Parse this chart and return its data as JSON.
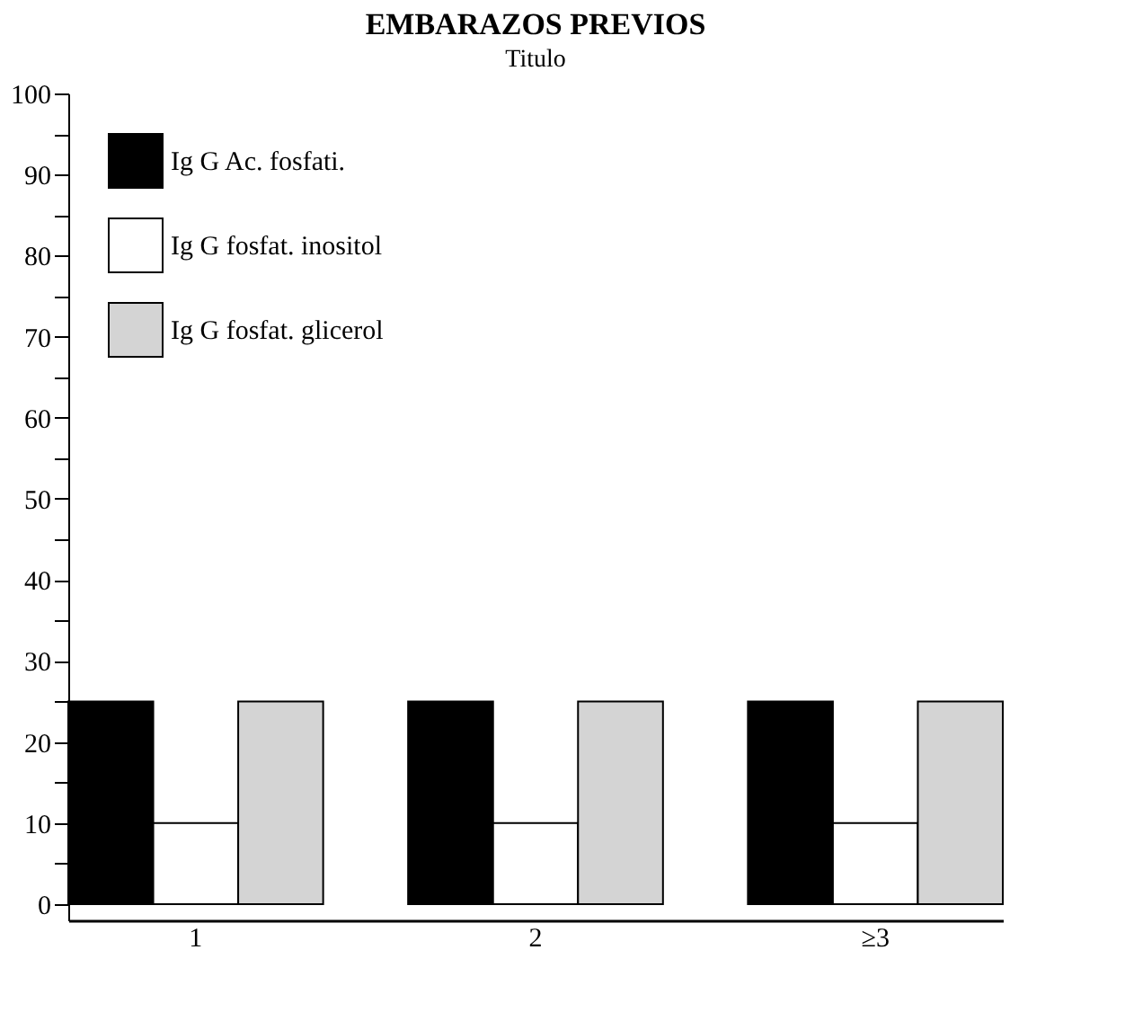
{
  "chart_data": {
    "type": "bar",
    "title": "EMBARAZOS PREVIOS",
    "ylabel": "Titulo",
    "categories": [
      "1",
      "2",
      "≥3"
    ],
    "series": [
      {
        "name": "Ig G Ac. fosfati.",
        "color": "#000000",
        "values": [
          25,
          25,
          25
        ]
      },
      {
        "name": "Ig G fosfat. inositol",
        "color": "#ffffff",
        "values": [
          10,
          10,
          10
        ]
      },
      {
        "name": "Ig G fosfat. glicerol",
        "color": "#d4d4d4",
        "values": [
          25,
          25,
          25
        ]
      }
    ],
    "ylim": [
      -2,
      100
    ],
    "yticks": [
      0,
      {
        "value": 5,
        "label": null
      },
      10,
      {
        "value": 15,
        "label": null
      },
      20,
      {
        "value": 25,
        "label": null
      },
      30,
      {
        "value": 35,
        "label": null
      },
      40,
      {
        "value": 45,
        "label": null
      },
      50,
      {
        "value": 55,
        "label": null
      },
      60,
      {
        "value": 65,
        "label": null
      },
      70,
      {
        "value": 75,
        "label": null
      },
      80,
      {
        "value": 85,
        "label": null
      },
      90,
      {
        "value": 95,
        "label": null
      },
      100
    ],
    "grid": false,
    "legend": "top left"
  }
}
